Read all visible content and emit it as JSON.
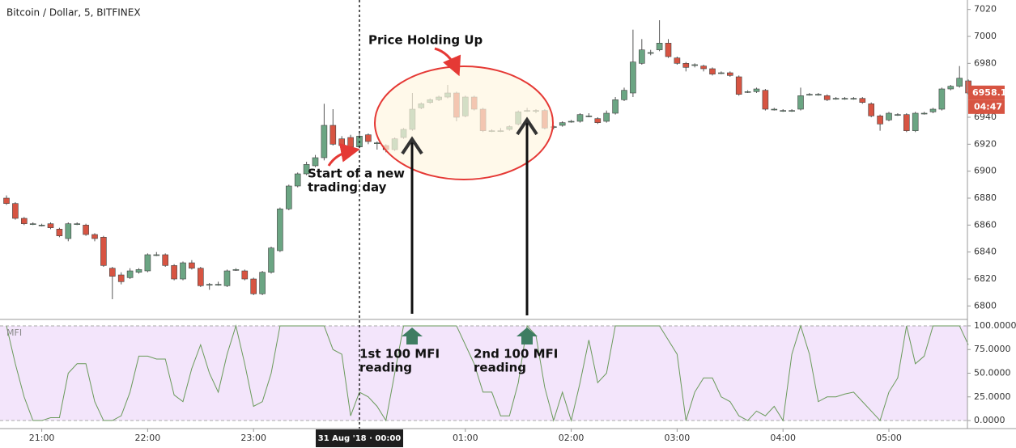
{
  "chart_data": {
    "type": "candlestick",
    "title": "Bitcoin / Dollar, 5, BITFINEX",
    "categories": [
      "20:40",
      "20:45",
      "20:50",
      "20:55",
      "21:00",
      "21:05",
      "21:10",
      "21:15",
      "21:20",
      "21:25",
      "21:30",
      "21:35",
      "21:40",
      "21:45",
      "21:50",
      "21:55",
      "22:00",
      "22:05",
      "22:10",
      "22:15",
      "22:20",
      "22:25",
      "22:30",
      "22:35",
      "22:40",
      "22:45",
      "22:50",
      "22:55",
      "23:00",
      "23:05",
      "23:10",
      "23:15",
      "23:20",
      "23:25",
      "23:30",
      "23:35",
      "23:40",
      "23:45",
      "23:50",
      "23:55",
      "00:00",
      "00:05",
      "00:10",
      "00:15",
      "00:20",
      "00:25",
      "00:30",
      "00:35",
      "00:40",
      "00:45",
      "00:50",
      "00:55",
      "01:00",
      "01:05",
      "01:10",
      "01:15",
      "01:20",
      "01:25",
      "01:30",
      "01:35",
      "01:40",
      "01:45",
      "01:50",
      "01:55",
      "02:00",
      "02:05",
      "02:10",
      "02:15",
      "02:20",
      "02:25",
      "02:30",
      "02:35",
      "02:40",
      "02:45",
      "02:50",
      "02:55",
      "03:00",
      "03:05",
      "03:10",
      "03:15",
      "03:20",
      "03:25",
      "03:30",
      "03:35",
      "03:40",
      "03:45",
      "03:50",
      "03:55",
      "04:00",
      "04:05",
      "04:10",
      "04:15",
      "04:20",
      "04:25",
      "04:30",
      "04:35",
      "04:40",
      "04:45",
      "04:50",
      "04:55",
      "05:00",
      "05:05",
      "05:10",
      "05:15",
      "05:20",
      "05:25",
      "05:30",
      "05:35",
      "05:40",
      "05:45"
    ],
    "open": [
      6880,
      6876,
      6865,
      6861,
      6860,
      6861,
      6857,
      6850,
      6861,
      6860,
      6853,
      6851,
      6828,
      6823,
      6821,
      6825,
      6826,
      6838,
      6838,
      6830,
      6820,
      6832,
      6828,
      6816,
      6816,
      6815,
      6827,
      6826,
      6820,
      6809,
      6825,
      6841,
      6872,
      6889,
      6898,
      6904,
      6910,
      6934,
      6924,
      6925,
      6918,
      6927,
      6921,
      6919,
      6916,
      6925,
      6931,
      6947,
      6951,
      6953,
      6955,
      6958,
      6941,
      6955,
      6946,
      6930,
      6930,
      6931,
      6935,
      6945,
      6945,
      6945,
      6933,
      6934,
      6937,
      6937,
      6941,
      6939,
      6937,
      6943,
      6953,
      6958,
      6980,
      6988,
      6990,
      6995,
      6984,
      6980,
      6979,
      6978,
      6976,
      6973,
      6973,
      6970,
      6959,
      6959,
      6960,
      6946,
      6945,
      6945,
      6946,
      6957,
      6957,
      6956,
      6954,
      6954,
      6954,
      6954,
      6950,
      6941,
      6938,
      6942,
      6942,
      6930,
      6943,
      6944,
      6946,
      6961,
      6963,
      6967
    ],
    "high": [
      6882,
      6877,
      6866,
      6862,
      6861,
      6862,
      6858,
      6862,
      6862,
      6861,
      6854,
      6852,
      6829,
      6825,
      6828,
      6828,
      6839,
      6840,
      6839,
      6831,
      6833,
      6834,
      6829,
      6817,
      6818,
      6827,
      6828,
      6827,
      6821,
      6826,
      6844,
      6873,
      6890,
      6899,
      6907,
      6912,
      6950,
      6946,
      6926,
      6927,
      6928,
      6928,
      6922,
      6920,
      6925,
      6932,
      6958,
      6951,
      6954,
      6956,
      6964,
      6959,
      6956,
      6956,
      6947,
      6931,
      6932,
      6934,
      6945,
      6947,
      6946,
      6946,
      6934,
      6937,
      6938,
      6943,
      6943,
      6940,
      6945,
      6955,
      6962,
      7005,
      6998,
      6990,
      7012,
      6998,
      6985,
      6981,
      6980,
      6979,
      6977,
      6974,
      6974,
      6971,
      6960,
      6962,
      6961,
      6947,
      6946,
      6946,
      6962,
      6958,
      6958,
      6957,
      6955,
      6955,
      6955,
      6955,
      6951,
      6942,
      6944,
      6943,
      6943,
      6944,
      6944,
      6947,
      6962,
      6964,
      6978,
      6968
    ],
    "low": [
      6875,
      6864,
      6860,
      6860,
      6859,
      6857,
      6851,
      6848,
      6860,
      6852,
      6848,
      6829,
      6805,
      6816,
      6820,
      6824,
      6825,
      6837,
      6829,
      6819,
      6819,
      6827,
      6814,
      6812,
      6815,
      6814,
      6826,
      6819,
      6808,
      6808,
      6824,
      6840,
      6871,
      6888,
      6897,
      6903,
      6908,
      6919,
      6917,
      6916,
      6917,
      6920,
      6916,
      6914,
      6915,
      6924,
      6930,
      6946,
      6950,
      6952,
      6954,
      6937,
      6940,
      6945,
      6929,
      6929,
      6929,
      6930,
      6934,
      6944,
      6943,
      6931,
      6931,
      6933,
      6936,
      6936,
      6940,
      6935,
      6936,
      6942,
      6952,
      6955,
      6979,
      6986,
      6989,
      6984,
      6979,
      6974,
      6977,
      6974,
      6971,
      6972,
      6970,
      6956,
      6958,
      6958,
      6945,
      6945,
      6944,
      6944,
      6945,
      6956,
      6956,
      6952,
      6953,
      6953,
      6953,
      6950,
      6940,
      6930,
      6937,
      6941,
      6929,
      6929,
      6942,
      6943,
      6945,
      6960,
      6962,
      6957
    ],
    "close": [
      6876,
      6865,
      6861,
      6861,
      6860,
      6858,
      6852,
      6861,
      6861,
      6853,
      6850,
      6830,
      6822,
      6818,
      6826,
      6827,
      6838,
      6838,
      6830,
      6820,
      6832,
      6828,
      6815,
      6816,
      6816,
      6826,
      6827,
      6820,
      6809,
      6825,
      6843,
      6872,
      6889,
      6898,
      6905,
      6910,
      6934,
      6920,
      6919,
      6918,
      6926,
      6922,
      6921,
      6916,
      6924,
      6931,
      6946,
      6950,
      6953,
      6955,
      6958,
      6940,
      6955,
      6946,
      6930,
      6930,
      6930,
      6933,
      6944,
      6945,
      6945,
      6932,
      6933,
      6936,
      6937,
      6942,
      6941,
      6936,
      6943,
      6953,
      6960,
      6981,
      6990,
      6988,
      6995,
      6985,
      6980,
      6977,
      6979,
      6976,
      6972,
      6973,
      6971,
      6957,
      6959,
      6961,
      6946,
      6946,
      6945,
      6945,
      6956,
      6957,
      6957,
      6953,
      6954,
      6954,
      6954,
      6951,
      6941,
      6935,
      6943,
      6942,
      6930,
      6943,
      6943,
      6946,
      6961,
      6963,
      6969,
      6958
    ],
    "up_color": "#6ba583",
    "down_color": "#d75442",
    "ylim": [
      6790,
      7027
    ],
    "yticks": [
      6800,
      6820,
      6840,
      6860,
      6880,
      6900,
      6920,
      6940,
      6960,
      6980,
      7000,
      7020
    ],
    "xticks": [
      {
        "value": "21:00",
        "label": "21:00"
      },
      {
        "value": "22:00",
        "label": "22:00"
      },
      {
        "value": "23:00",
        "label": "23:00"
      },
      {
        "value": "00:00",
        "label": "31 Aug '18 · 00:00"
      },
      {
        "value": "01:00",
        "label": "01:00"
      },
      {
        "value": "02:00",
        "label": "02:00"
      },
      {
        "value": "03:00",
        "label": "03:00"
      },
      {
        "value": "04:00",
        "label": "04:00"
      },
      {
        "value": "05:00",
        "label": "05:00"
      }
    ],
    "grid": false,
    "last_price": 6958.1,
    "countdown": "04:47",
    "annotations": [
      {
        "lines": [
          "Price Holding Up"
        ]
      },
      {
        "lines": [
          "Start of a new",
          "trading day"
        ]
      },
      {
        "lines": [
          "1st 100 MFI",
          "reading"
        ]
      },
      {
        "lines": [
          "2nd 100 MFI",
          "reading"
        ]
      }
    ],
    "indicator": {
      "type": "line",
      "name": "MFI",
      "color": "#6a9a5b",
      "values": [
        100,
        60,
        25,
        0,
        0,
        3,
        3,
        50,
        60,
        60,
        20,
        0,
        0,
        5,
        30,
        68,
        68,
        65,
        65,
        27,
        20,
        55,
        80,
        50,
        30,
        70,
        100,
        60,
        15,
        20,
        50,
        100,
        100,
        100,
        100,
        100,
        100,
        75,
        70,
        5,
        30,
        25,
        15,
        0,
        50,
        100,
        100,
        100,
        100,
        100,
        100,
        100,
        80,
        60,
        30,
        30,
        5,
        5,
        40,
        100,
        90,
        35,
        0,
        30,
        0,
        40,
        85,
        40,
        50,
        100,
        100,
        100,
        100,
        100,
        100,
        85,
        70,
        0,
        30,
        45,
        45,
        25,
        20,
        5,
        0,
        10,
        5,
        15,
        0,
        70,
        100,
        70,
        20,
        25,
        25,
        28,
        30,
        20,
        10,
        0,
        30,
        45,
        100,
        60,
        68,
        100,
        100,
        100,
        100,
        80
      ],
      "ylim": [
        -8.5,
        106.8
      ],
      "yticks": [
        {
          "value": 100,
          "label": "100.0000"
        },
        {
          "value": 75,
          "label": "75.0000"
        },
        {
          "value": 50,
          "label": "50.0000"
        },
        {
          "value": 25,
          "label": "25.0000"
        },
        {
          "value": 0,
          "label": "0.0000"
        }
      ],
      "band": [
        0,
        100
      ],
      "band_color": "#f3e5fb"
    }
  }
}
